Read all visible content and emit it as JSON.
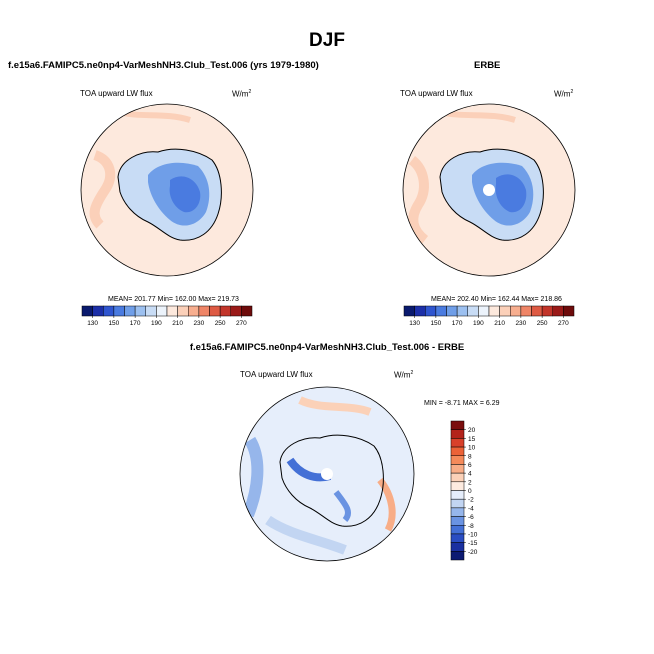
{
  "figure": {
    "title": "DJF",
    "panel1_title": "f.e15a6.FAMIPC5.ne0np4-VarMeshNH3.Club_Test.006 (yrs 1979-1980)",
    "panel2_title": "ERBE",
    "panel3_title": "f.e15a6.FAMIPC5.ne0np4-VarMeshNH3.Club_Test.006 - ERBE",
    "variable_label": "TOA upward LW flux",
    "units_base": "W/m",
    "units_exp": "2"
  },
  "chart_data": [
    {
      "type": "heatmap",
      "title": "f.e15a6.FAMIPC5.ne0np4-VarMeshNH3.Club_Test.006 (yrs 1979-1980)",
      "variable": "TOA upward LW flux",
      "units": "W/m2",
      "projection": "south-polar stereographic",
      "stats_text": "MEAN= 201.77  Min= 162.00  Max= 219.73",
      "mean": 201.77,
      "min": 162.0,
      "max": 219.73,
      "colorbar_levels": [
        "130",
        "150",
        "170",
        "190",
        "210",
        "230",
        "250",
        "270"
      ],
      "colorbar_colors": [
        "#0a1a6e",
        "#1c2fa8",
        "#2f55cf",
        "#4a7be0",
        "#6f9ee8",
        "#9cc0f0",
        "#c8dcf5",
        "#ecf3fb",
        "#fde9dd",
        "#fbd0b9",
        "#f7ae8f",
        "#ef8567",
        "#de5a43",
        "#c2352a",
        "#9a1a18",
        "#6e0b0b"
      ]
    },
    {
      "type": "heatmap",
      "title": "ERBE",
      "variable": "TOA upward LW flux",
      "units": "W/m2",
      "projection": "south-polar stereographic",
      "stats_text": "MEAN= 202.40  Min= 162.44  Max= 218.86",
      "mean": 202.4,
      "min": 162.44,
      "max": 218.86,
      "colorbar_levels": [
        "130",
        "150",
        "170",
        "190",
        "210",
        "230",
        "250",
        "270"
      ],
      "colorbar_colors": [
        "#0a1a6e",
        "#1c2fa8",
        "#2f55cf",
        "#4a7be0",
        "#6f9ee8",
        "#9cc0f0",
        "#c8dcf5",
        "#ecf3fb",
        "#fde9dd",
        "#fbd0b9",
        "#f7ae8f",
        "#ef8567",
        "#de5a43",
        "#c2352a",
        "#9a1a18",
        "#6e0b0b"
      ]
    },
    {
      "type": "heatmap",
      "title": "f.e15a6.FAMIPC5.ne0np4-VarMeshNH3.Club_Test.006 - ERBE",
      "variable": "TOA upward LW flux",
      "units": "W/m2",
      "projection": "south-polar stereographic",
      "stats_text": "MIN = -8.71 MAX = 6.29",
      "min": -8.71,
      "max": 6.29,
      "colorbar_levels": [
        "20",
        "15",
        "10",
        "8",
        "6",
        "4",
        "2",
        "0",
        "-2",
        "-4",
        "-6",
        "-8",
        "-10",
        "-15",
        "-20"
      ],
      "colorbar_colors": [
        "#7a0e0e",
        "#b3231b",
        "#d8402a",
        "#ec6237",
        "#f58a5a",
        "#f8ad87",
        "#fbd1b8",
        "#fdebe0",
        "#e6eefb",
        "#c2d5f2",
        "#96b6eb",
        "#6a93e2",
        "#4470d6",
        "#2a4dc2",
        "#1a30a0",
        "#0c1a72"
      ]
    }
  ]
}
